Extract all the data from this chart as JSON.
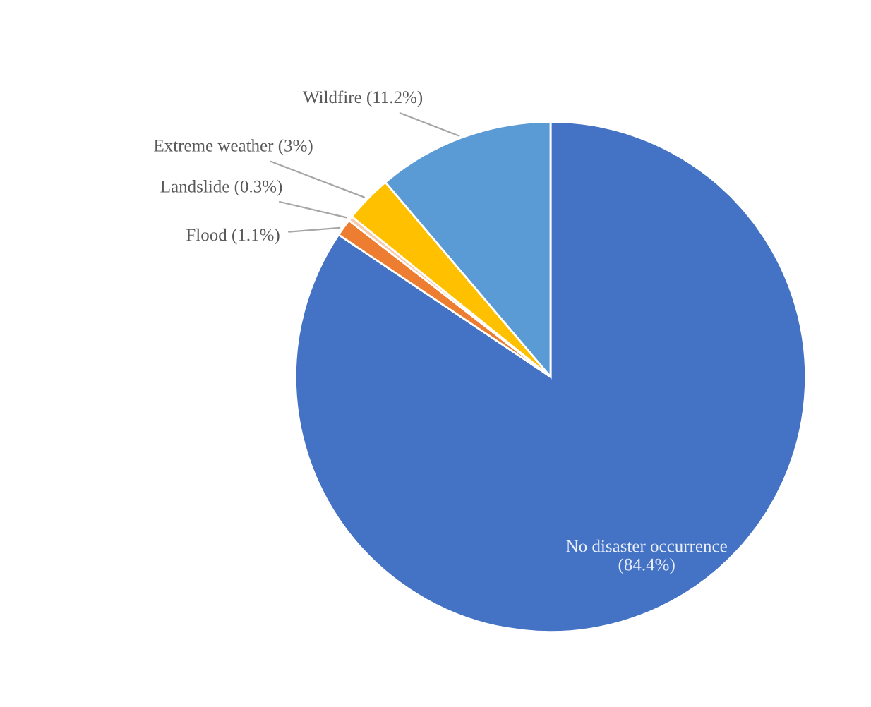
{
  "chart_data": {
    "type": "pie",
    "categories": [
      "No disaster occurrence",
      "Flood",
      "Landslide",
      "Extreme weather",
      "Wildfire"
    ],
    "values": [
      84.4,
      1.1,
      0.3,
      3,
      11.2
    ],
    "value_labels": [
      "(84.4%)",
      "(1.1%)",
      "(0.3%)",
      "(3%)",
      "(11.2%)"
    ],
    "colors": [
      "#4472c4",
      "#ed7d31",
      "#f8cbad",
      "#ffc000",
      "#5b9bd5"
    ],
    "legend": false
  }
}
